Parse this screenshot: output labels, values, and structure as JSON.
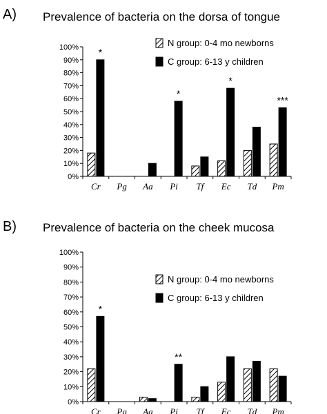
{
  "chart_data": [
    {
      "type": "bar",
      "panel_label": "A)",
      "title": "Prevalence of bacteria on the dorsa of tongue",
      "categories": [
        "Cr",
        "Pg",
        "Aa",
        "Pi",
        "Tf",
        "Ec",
        "Td",
        "Pm"
      ],
      "series": [
        {
          "name": "N group: 0-4 mo newborns",
          "pattern": "hatched",
          "values": [
            18,
            0,
            0,
            0,
            8,
            12,
            20,
            25
          ]
        },
        {
          "name": "C group: 6-13 y children",
          "pattern": "solid",
          "color": "#000000",
          "values": [
            90,
            0,
            10,
            58,
            15,
            68,
            38,
            53
          ]
        }
      ],
      "significance": [
        "*",
        "",
        "",
        "*",
        "",
        "*",
        "",
        "***"
      ],
      "yticks": [
        "0%",
        "10%",
        "20%",
        "30%",
        "40%",
        "50%",
        "60%",
        "70%",
        "80%",
        "90%",
        "100%"
      ],
      "ylim": [
        0,
        100
      ],
      "legend_position": "top-right",
      "grid": false
    },
    {
      "type": "bar",
      "panel_label": "B)",
      "title": "Prevalence of bacteria on the cheek mucosa",
      "categories": [
        "Cr",
        "Pg",
        "Aa",
        "Pi",
        "Tf",
        "Ec",
        "Td",
        "Pm"
      ],
      "series": [
        {
          "name": "N group: 0-4 mo newborns",
          "pattern": "hatched",
          "values": [
            22,
            0,
            3,
            0,
            3,
            13,
            22,
            22
          ]
        },
        {
          "name": "C group: 6-13 y children",
          "pattern": "solid",
          "color": "#000000",
          "values": [
            57,
            0,
            2,
            25,
            10,
            30,
            27,
            17
          ]
        }
      ],
      "significance": [
        "*",
        "",
        "",
        "**",
        "",
        "",
        "",
        ""
      ],
      "yticks": [
        "0%",
        "10%",
        "20%",
        "30%",
        "40%",
        "50%",
        "60%",
        "70%",
        "80%",
        "90%",
        "100%"
      ],
      "ylim": [
        0,
        100
      ],
      "legend_position": "top-right",
      "grid": false
    }
  ]
}
